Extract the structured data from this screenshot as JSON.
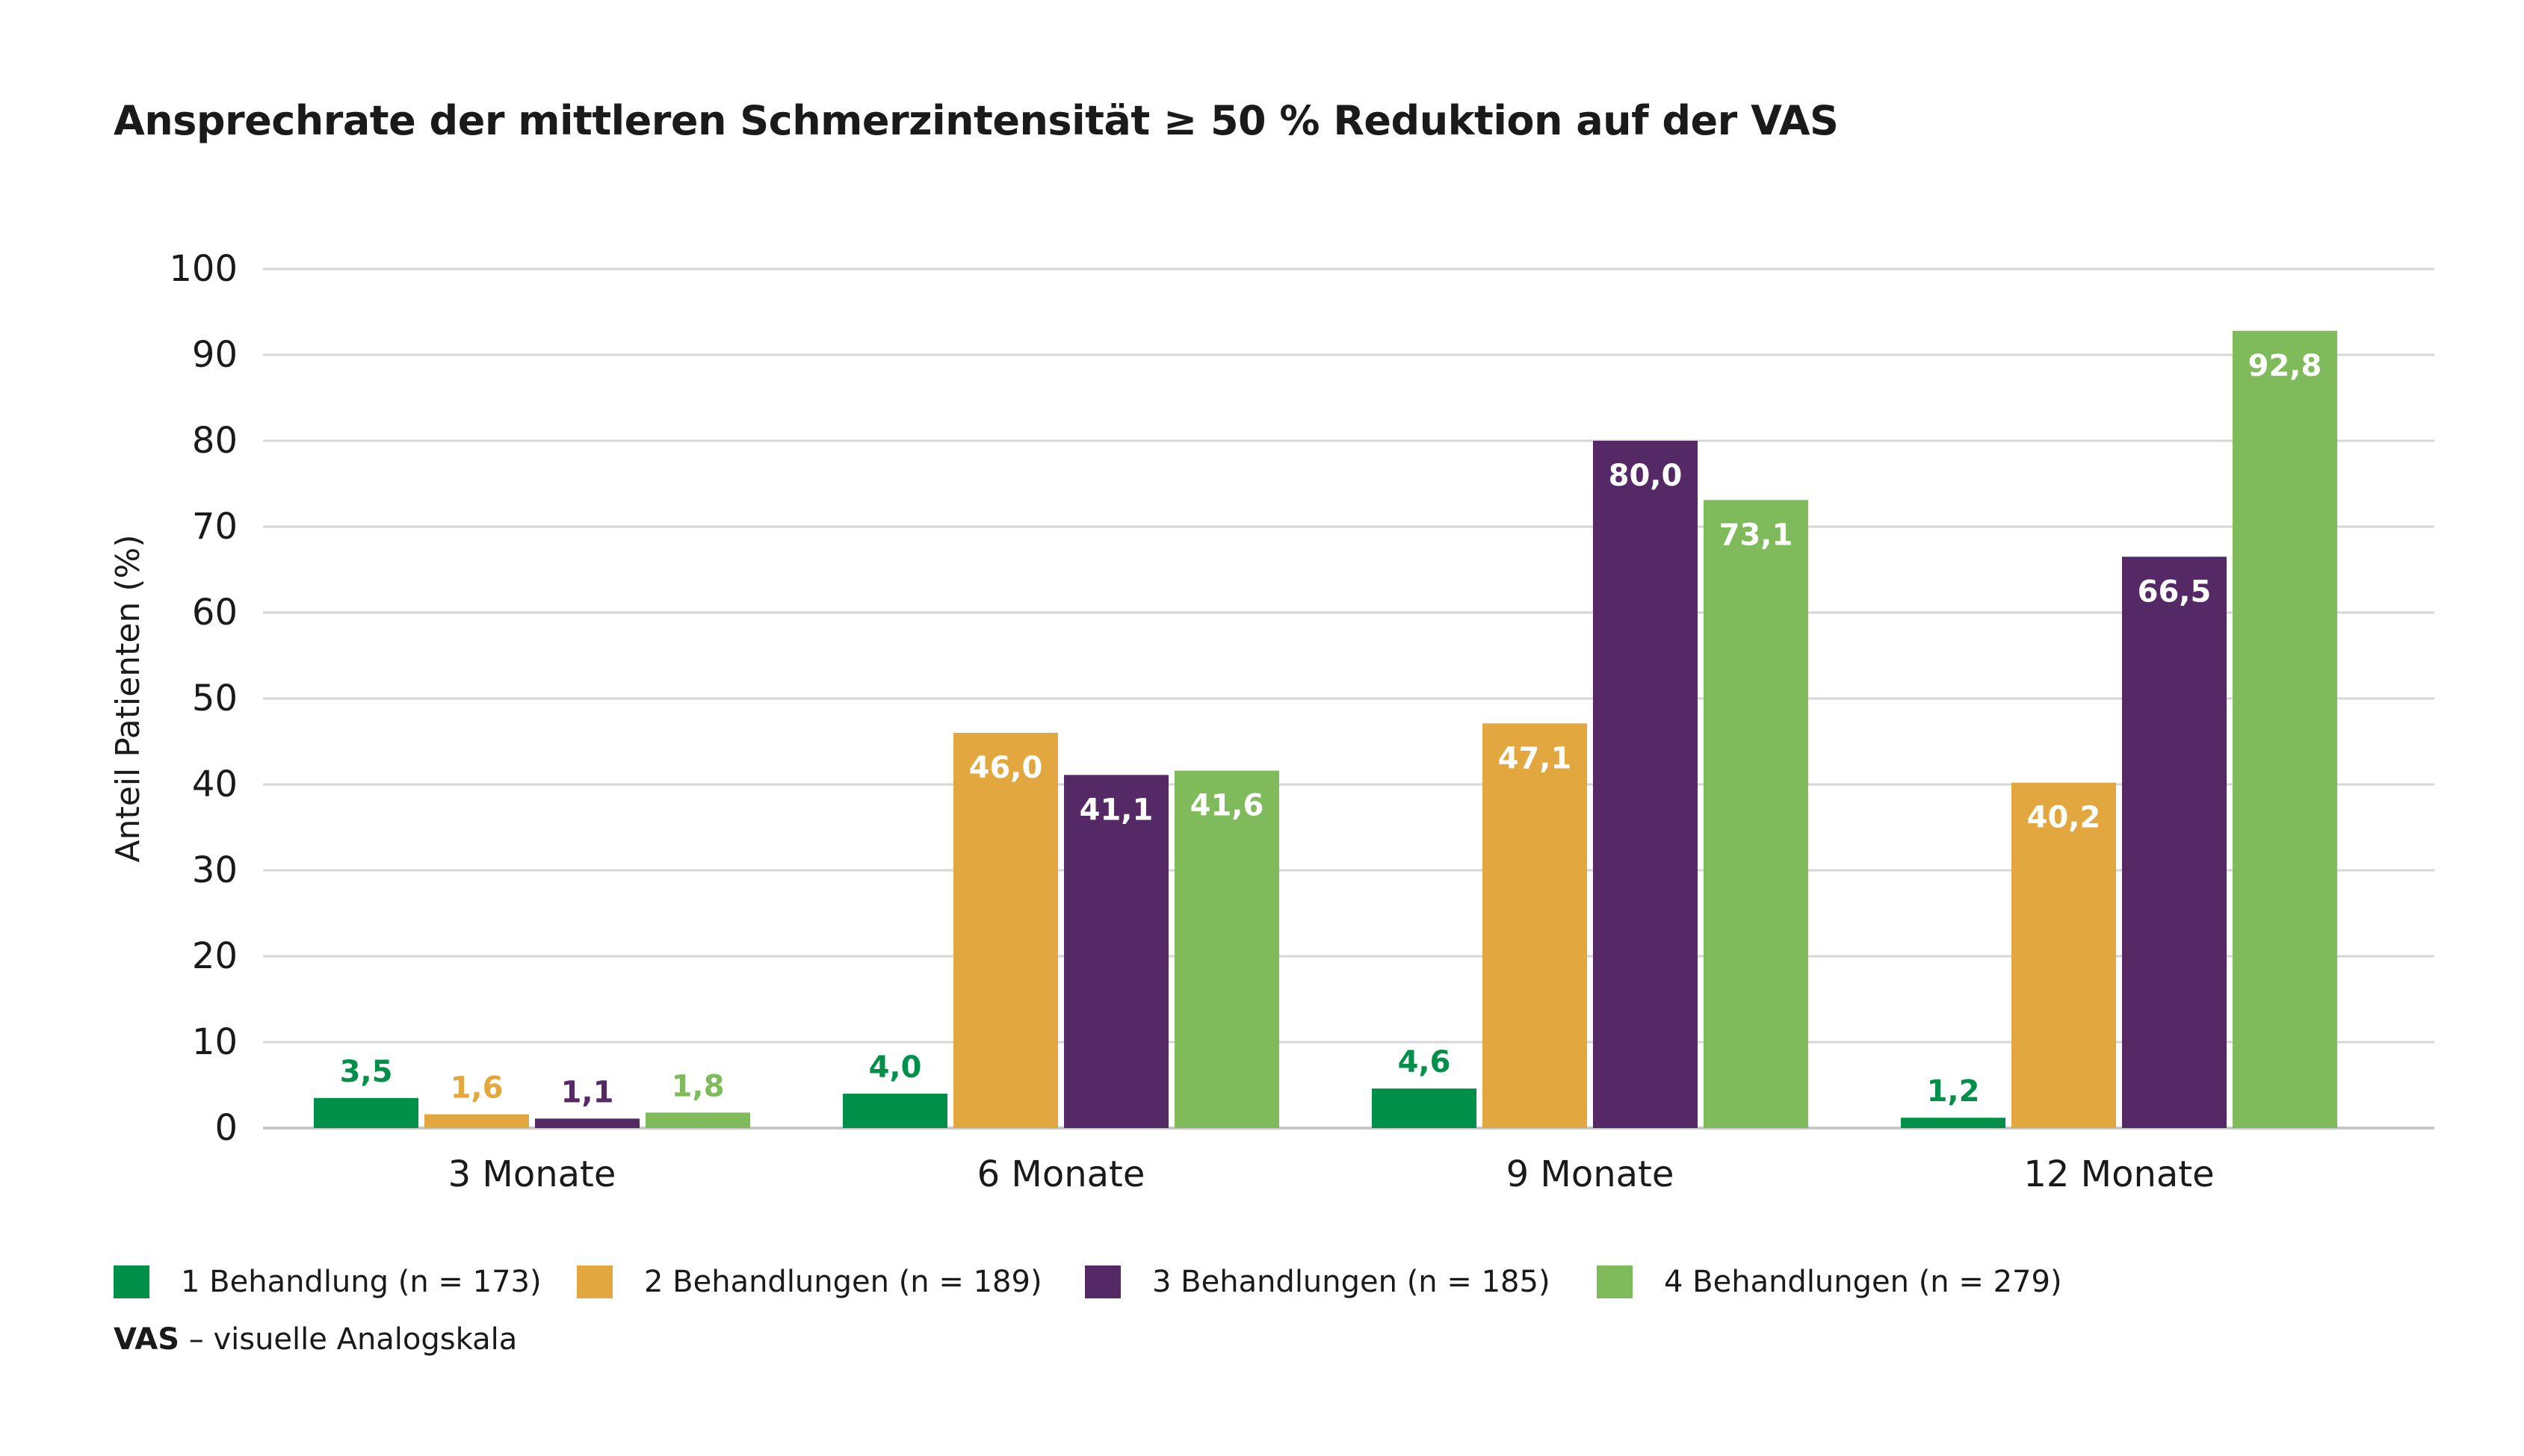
{
  "colors": {
    "series1": "#00904a",
    "series2": "#e3a73f",
    "series3": "#552966",
    "series4": "#7fbb5a",
    "grid": "#d6d6d6",
    "text": "#1a1a1a",
    "label_inside": "#ffffff"
  },
  "footnote": {
    "abbr": "VAS",
    "text": " – visuelle Analogskala"
  },
  "chart_data": {
    "type": "bar",
    "title": "Ansprechrate der mittleren Schmerzintensität ≥ 50 % Reduktion auf der VAS",
    "xlabel": "",
    "ylabel": "Anteil Patienten (%)",
    "ylim": [
      0,
      100
    ],
    "yticks": [
      "0",
      "10",
      "20",
      "30",
      "40",
      "50",
      "60",
      "70",
      "80",
      "90",
      "100"
    ],
    "grid": true,
    "legend_position": "bottom",
    "categories": [
      "3 Monate",
      "6 Monate",
      "9 Monate",
      "12 Monate"
    ],
    "series": [
      {
        "name": "1 Behandlung (n = 173)",
        "values": [
          3.5,
          4.0,
          4.6,
          1.2
        ],
        "labels": [
          "3,5",
          "4,0",
          "4,6",
          "1,2"
        ]
      },
      {
        "name": "2 Behandlungen (n = 189)",
        "values": [
          1.6,
          46.0,
          47.1,
          40.2
        ],
        "labels": [
          "1,6",
          "46,0",
          "47,1",
          "40,2"
        ]
      },
      {
        "name": "3 Behandlungen (n = 185)",
        "values": [
          1.1,
          41.1,
          80.0,
          66.5
        ],
        "labels": [
          "1,1",
          "41,1",
          "80,0",
          "66,5"
        ]
      },
      {
        "name": "4 Behandlungen (n = 279)",
        "values": [
          1.8,
          41.6,
          73.1,
          92.8
        ],
        "labels": [
          "1,8",
          "41,6",
          "73,1",
          "92,8"
        ]
      }
    ]
  }
}
